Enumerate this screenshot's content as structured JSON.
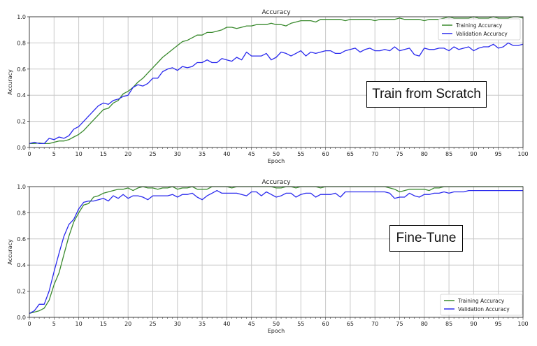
{
  "chart_data": [
    {
      "type": "line",
      "title": "Accuracy",
      "xlabel": "Epoch",
      "ylabel": "Accuracy",
      "xlim": [
        0,
        100
      ],
      "ylim": [
        0,
        1.0
      ],
      "xticks": [
        0,
        5,
        10,
        15,
        20,
        25,
        30,
        35,
        40,
        45,
        50,
        55,
        60,
        65,
        70,
        75,
        80,
        85,
        90,
        95,
        100
      ],
      "yticks": [
        "0.0",
        "0.2",
        "0.4",
        "0.6",
        "0.8",
        "1.0"
      ],
      "grid": true,
      "legend_position": "upper right",
      "annotation": "Train from Scratch",
      "series": [
        {
          "name": "Training Accuracy",
          "color": "#3a8a2e",
          "values": [
            0.03,
            0.03,
            0.035,
            0.03,
            0.03,
            0.04,
            0.05,
            0.05,
            0.06,
            0.08,
            0.1,
            0.13,
            0.17,
            0.21,
            0.25,
            0.29,
            0.3,
            0.34,
            0.36,
            0.41,
            0.43,
            0.46,
            0.5,
            0.53,
            0.57,
            0.61,
            0.65,
            0.69,
            0.72,
            0.75,
            0.78,
            0.81,
            0.82,
            0.84,
            0.86,
            0.86,
            0.88,
            0.88,
            0.89,
            0.9,
            0.92,
            0.92,
            0.91,
            0.92,
            0.93,
            0.93,
            0.94,
            0.94,
            0.94,
            0.95,
            0.94,
            0.94,
            0.93,
            0.95,
            0.96,
            0.97,
            0.97,
            0.97,
            0.96,
            0.98,
            0.98,
            0.98,
            0.98,
            0.98,
            0.97,
            0.98,
            0.98,
            0.98,
            0.98,
            0.98,
            0.97,
            0.98,
            0.98,
            0.98,
            0.98,
            0.99,
            0.98,
            0.98,
            0.98,
            0.98,
            0.97,
            0.98,
            0.98,
            0.98,
            0.99,
            1.0,
            0.99,
            0.99,
            0.99,
            0.99,
            1.0,
            0.99,
            0.99,
            0.99,
            1.0,
            0.99,
            0.99,
            0.99,
            1.0,
            1.0,
            0.99
          ]
        },
        {
          "name": "Validation Accuracy",
          "color": "#2a2aee",
          "values": [
            0.03,
            0.04,
            0.03,
            0.03,
            0.07,
            0.06,
            0.08,
            0.07,
            0.09,
            0.14,
            0.16,
            0.2,
            0.24,
            0.28,
            0.32,
            0.34,
            0.33,
            0.36,
            0.37,
            0.39,
            0.4,
            0.46,
            0.48,
            0.47,
            0.49,
            0.53,
            0.53,
            0.58,
            0.6,
            0.61,
            0.59,
            0.62,
            0.61,
            0.62,
            0.65,
            0.65,
            0.67,
            0.65,
            0.65,
            0.68,
            0.67,
            0.66,
            0.69,
            0.67,
            0.73,
            0.7,
            0.7,
            0.7,
            0.72,
            0.67,
            0.69,
            0.73,
            0.72,
            0.7,
            0.72,
            0.74,
            0.7,
            0.73,
            0.72,
            0.73,
            0.74,
            0.74,
            0.72,
            0.72,
            0.74,
            0.75,
            0.76,
            0.73,
            0.75,
            0.76,
            0.74,
            0.74,
            0.75,
            0.74,
            0.77,
            0.74,
            0.75,
            0.76,
            0.71,
            0.7,
            0.76,
            0.75,
            0.75,
            0.76,
            0.76,
            0.74,
            0.77,
            0.75,
            0.76,
            0.77,
            0.74,
            0.76,
            0.77,
            0.77,
            0.79,
            0.76,
            0.77,
            0.8,
            0.78,
            0.78,
            0.79
          ]
        }
      ]
    },
    {
      "type": "line",
      "title": "Accuracy",
      "xlabel": "Epoch",
      "ylabel": "Accuracy",
      "xlim": [
        0,
        100
      ],
      "ylim": [
        0,
        1.0
      ],
      "xticks": [
        0,
        5,
        10,
        15,
        20,
        25,
        30,
        35,
        40,
        45,
        50,
        55,
        60,
        65,
        70,
        75,
        80,
        85,
        90,
        95,
        100
      ],
      "yticks": [
        "0.0",
        "0.2",
        "0.4",
        "0.6",
        "0.8",
        "1.0"
      ],
      "grid": true,
      "legend_position": "lower right",
      "annotation": "Fine-Tune",
      "series": [
        {
          "name": "Training Accuracy",
          "color": "#3a8a2e",
          "values": [
            0.03,
            0.04,
            0.05,
            0.07,
            0.13,
            0.25,
            0.34,
            0.48,
            0.62,
            0.73,
            0.8,
            0.86,
            0.87,
            0.92,
            0.93,
            0.95,
            0.96,
            0.97,
            0.98,
            0.98,
            0.99,
            0.97,
            0.99,
            1.0,
            0.99,
            0.99,
            0.98,
            0.99,
            0.99,
            1.0,
            0.98,
            0.99,
            0.99,
            1.0,
            0.98,
            0.98,
            0.98,
            1.0,
            1.0,
            1.0,
            1.0,
            0.99,
            1.0,
            1.0,
            1.0,
            1.0,
            1.0,
            1.0,
            1.0,
            1.0,
            0.99,
            0.99,
            1.0,
            1.0,
            0.99,
            1.0,
            1.0,
            1.0,
            1.0,
            0.99,
            1.0,
            1.0,
            1.0,
            1.0,
            1.0,
            1.0,
            1.0,
            1.0,
            1.0,
            1.0,
            1.0,
            1.0,
            1.0,
            0.99,
            0.98,
            0.96,
            0.97,
            0.98,
            0.98,
            0.98,
            0.98,
            0.97,
            0.99,
            0.99,
            1.0,
            1.0,
            1.0,
            1.0,
            1.0,
            1.0,
            1.0,
            1.0,
            1.0,
            1.0,
            1.0,
            1.0,
            1.0,
            1.0,
            1.0,
            1.0,
            1.0
          ]
        },
        {
          "name": "Validation Accuracy",
          "color": "#2a2aee",
          "values": [
            0.03,
            0.05,
            0.1,
            0.1,
            0.2,
            0.35,
            0.49,
            0.62,
            0.71,
            0.75,
            0.83,
            0.88,
            0.89,
            0.89,
            0.9,
            0.91,
            0.89,
            0.93,
            0.91,
            0.94,
            0.91,
            0.93,
            0.93,
            0.92,
            0.9,
            0.93,
            0.93,
            0.93,
            0.93,
            0.94,
            0.92,
            0.94,
            0.94,
            0.95,
            0.92,
            0.9,
            0.93,
            0.95,
            0.97,
            0.95,
            0.95,
            0.95,
            0.95,
            0.94,
            0.93,
            0.96,
            0.96,
            0.93,
            0.96,
            0.94,
            0.92,
            0.93,
            0.95,
            0.95,
            0.92,
            0.94,
            0.95,
            0.95,
            0.92,
            0.94,
            0.94,
            0.94,
            0.95,
            0.92,
            0.96,
            0.96,
            0.96,
            0.96,
            0.96,
            0.96,
            0.96,
            0.96,
            0.96,
            0.95,
            0.91,
            0.92,
            0.92,
            0.95,
            0.93,
            0.92,
            0.94,
            0.94,
            0.95,
            0.95,
            0.96,
            0.95,
            0.96,
            0.96,
            0.96,
            0.97,
            0.97,
            0.97,
            0.97,
            0.97,
            0.97,
            0.97,
            0.97,
            0.97,
            0.97,
            0.97,
            0.97
          ]
        }
      ]
    }
  ]
}
